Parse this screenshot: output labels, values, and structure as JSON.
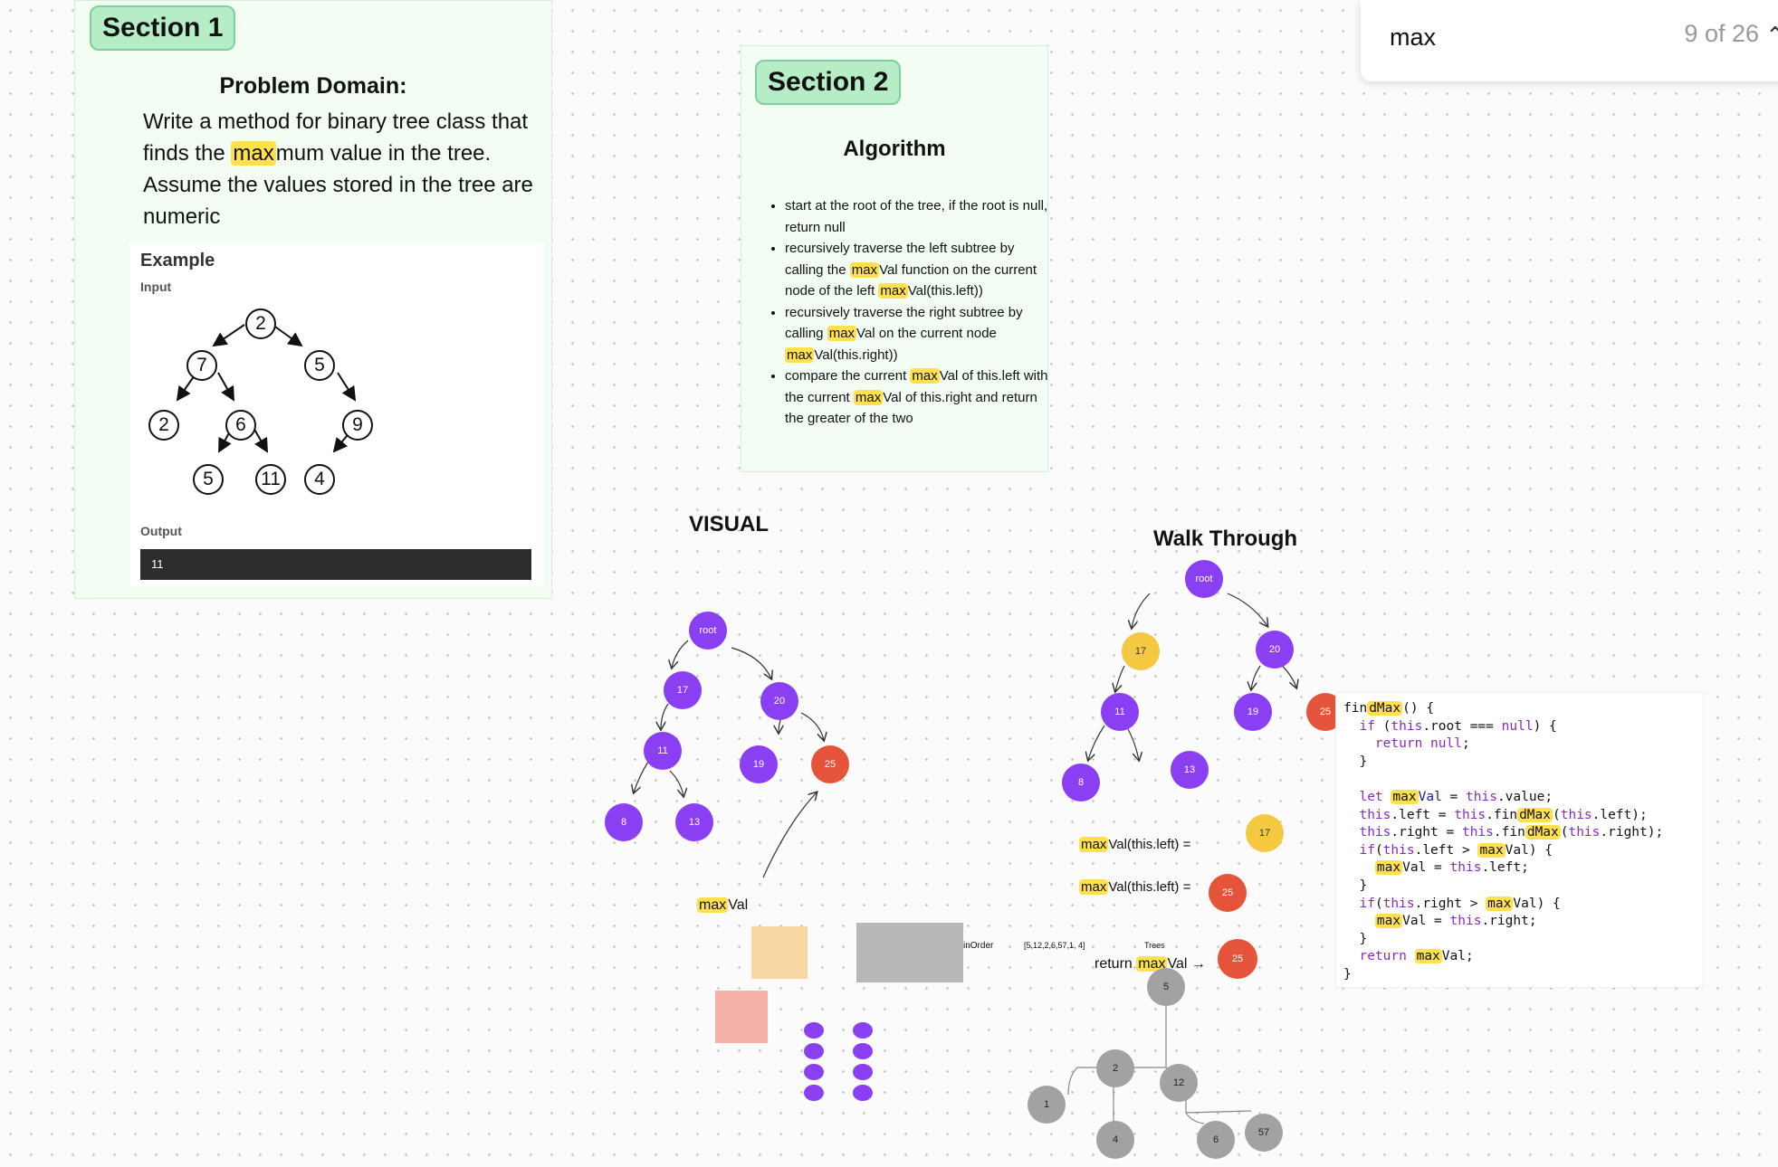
{
  "search": {
    "query": "max",
    "count": "9 of 26",
    "icon": "chevron-up-icon"
  },
  "section1": {
    "tag": "Section 1",
    "problem_title": "Problem Domain:",
    "problem_text_before": "Write a method for binary tree class that finds the ",
    "problem_highlight": "max",
    "problem_text_after": "mum value in the tree. Assume the values stored in the tree are numeric",
    "example": {
      "heading": "Example",
      "input_label": "Input",
      "output_label": "Output",
      "output_value": "11",
      "tree_nodes": [
        "2",
        "7",
        "5",
        "2",
        "6",
        "9",
        "5",
        "11",
        "4"
      ]
    }
  },
  "section2": {
    "tag": "Section 2",
    "title": "Algorithm",
    "bullets": [
      {
        "text": "start at the root of the tree, if the root is null, return null"
      },
      {
        "pre": "recursively traverse the left subtree by calling the ",
        "hl": "max",
        "mid": "Val function on the current node of the left ",
        "hl2": "max",
        "post": "Val(this.left))"
      },
      {
        "pre": "recursively traverse the right subtree by calling ",
        "hl": "max",
        "mid": "Val on the current node  ",
        "hl2": "max",
        "post": "Val(this.right))"
      },
      {
        "pre": "compare the current ",
        "hl": "max",
        "mid": "Val of this.left with the current ",
        "hl2": "max",
        "post": "Val of this.right and return the greater of the two"
      }
    ]
  },
  "visual": {
    "heading": "VISUAL",
    "nodes": [
      "root",
      "17",
      "20",
      "11",
      "19",
      "25",
      "8",
      "13"
    ],
    "max_label_hl": "max",
    "max_label_rest": "Val",
    "inorder_label": "inOrder"
  },
  "walkthrough": {
    "heading": "Walk Through",
    "nodes": [
      "root",
      "17",
      "20",
      "11",
      "19",
      "25",
      "8",
      "13"
    ],
    "left_label_hl": "max",
    "left_label_rest": "Val(this.left) =",
    "left_value": "17",
    "right_label_hl": "max",
    "right_label_rest": "Val(this.left) =",
    "right_value": "25",
    "return_pre": "return ",
    "return_hl": "max",
    "return_post": "Val →",
    "return_value": "25",
    "array_text": "[5,12,2,6,57,1, 4]",
    "trees_label": "Trees",
    "gray_nodes": [
      "5",
      "2",
      "12",
      "1",
      "4",
      "6",
      "57"
    ]
  },
  "code": {
    "lines": [
      [
        [
          "",
          "fin"
        ],
        [
          "hl",
          "dMax"
        ],
        [
          "",
          "() {"
        ]
      ],
      [
        [
          "",
          "  "
        ],
        [
          "kw",
          "if"
        ],
        [
          "",
          " ("
        ],
        [
          "kw",
          "this"
        ],
        [
          "",
          ".root === "
        ],
        [
          "kw",
          "null"
        ],
        [
          "",
          ") {"
        ]
      ],
      [
        [
          "",
          "    "
        ],
        [
          "kw",
          "return"
        ],
        [
          "",
          " "
        ],
        [
          "kw",
          "null"
        ],
        [
          "",
          ";"
        ]
      ],
      [
        [
          "",
          "  }"
        ]
      ],
      [
        [
          "",
          ""
        ]
      ],
      [
        [
          "",
          "  "
        ],
        [
          "kw",
          "let"
        ],
        [
          "",
          " "
        ],
        [
          "hl",
          "max"
        ],
        [
          "fn",
          "Val"
        ],
        [
          "",
          " = "
        ],
        [
          "kw",
          "this"
        ],
        [
          "",
          ".value;"
        ]
      ],
      [
        [
          "",
          "  "
        ],
        [
          "kw",
          "this"
        ],
        [
          "",
          ".left = "
        ],
        [
          "kw",
          "this"
        ],
        [
          "",
          ".fin"
        ],
        [
          "hl",
          "dMax"
        ],
        [
          "",
          "("
        ],
        [
          "kw",
          "this"
        ],
        [
          "",
          ".left);"
        ]
      ],
      [
        [
          "",
          "  "
        ],
        [
          "kw",
          "this"
        ],
        [
          "",
          ".right = "
        ],
        [
          "kw",
          "this"
        ],
        [
          "",
          ".fin"
        ],
        [
          "hl",
          "dMax"
        ],
        [
          "",
          "("
        ],
        [
          "kw",
          "this"
        ],
        [
          "",
          ".right);"
        ]
      ],
      [
        [
          "",
          "  "
        ],
        [
          "kw",
          "if"
        ],
        [
          "",
          "("
        ],
        [
          "kw",
          "this"
        ],
        [
          "",
          ".left > "
        ],
        [
          "hl",
          "max"
        ],
        [
          "",
          "Val) {"
        ]
      ],
      [
        [
          "",
          "    "
        ],
        [
          "hl",
          "max"
        ],
        [
          "",
          "Val = "
        ],
        [
          "kw",
          "this"
        ],
        [
          "",
          ".left;"
        ]
      ],
      [
        [
          "",
          "  }"
        ]
      ],
      [
        [
          "",
          "  "
        ],
        [
          "kw",
          "if"
        ],
        [
          "",
          "("
        ],
        [
          "kw",
          "this"
        ],
        [
          "",
          ".right > "
        ],
        [
          "hl",
          "max"
        ],
        [
          "",
          "Val) {"
        ]
      ],
      [
        [
          "",
          "    "
        ],
        [
          "hl",
          "max"
        ],
        [
          "",
          "Val = "
        ],
        [
          "kw",
          "this"
        ],
        [
          "",
          ".right;"
        ]
      ],
      [
        [
          "",
          "  }"
        ]
      ],
      [
        [
          "",
          "  "
        ],
        [
          "kw",
          "return"
        ],
        [
          "",
          " "
        ],
        [
          "hl",
          "max"
        ],
        [
          "",
          "Val;"
        ]
      ],
      [
        [
          "",
          "}"
        ]
      ]
    ]
  }
}
